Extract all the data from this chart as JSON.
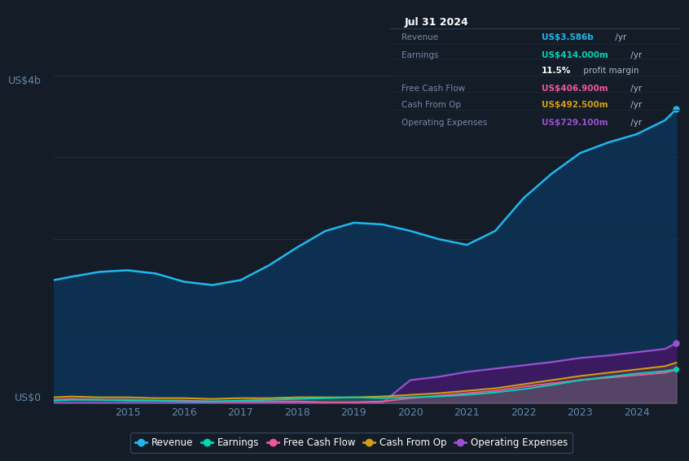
{
  "bg_color": "#131c27",
  "plot_bg_color": "#131c27",
  "ylabel_top": "US$4b",
  "ylabel_bottom": "US$0",
  "x_years": [
    2013.7,
    2014.0,
    2014.5,
    2015.0,
    2015.5,
    2016.0,
    2016.5,
    2017.0,
    2017.5,
    2018.0,
    2018.5,
    2019.0,
    2019.5,
    2020.0,
    2020.5,
    2021.0,
    2021.5,
    2022.0,
    2022.5,
    2023.0,
    2023.5,
    2024.0,
    2024.5,
    2024.7
  ],
  "revenue": [
    1.5,
    1.54,
    1.6,
    1.62,
    1.58,
    1.48,
    1.44,
    1.5,
    1.68,
    1.9,
    2.1,
    2.2,
    2.18,
    2.1,
    2.0,
    1.93,
    2.1,
    2.5,
    2.8,
    3.05,
    3.18,
    3.28,
    3.45,
    3.586
  ],
  "earnings": [
    0.03,
    0.04,
    0.04,
    0.03,
    0.03,
    0.02,
    0.02,
    0.03,
    0.04,
    0.05,
    0.06,
    0.07,
    0.06,
    0.07,
    0.08,
    0.1,
    0.13,
    0.17,
    0.22,
    0.28,
    0.32,
    0.36,
    0.39,
    0.414
  ],
  "free_cash_flow": [
    0.04,
    0.05,
    0.04,
    0.04,
    0.03,
    0.03,
    0.02,
    0.02,
    0.02,
    0.02,
    0.01,
    0.01,
    0.02,
    0.06,
    0.09,
    0.12,
    0.15,
    0.2,
    0.24,
    0.28,
    0.31,
    0.34,
    0.37,
    0.4069
  ],
  "cash_from_op": [
    0.07,
    0.08,
    0.07,
    0.07,
    0.06,
    0.06,
    0.05,
    0.06,
    0.06,
    0.07,
    0.07,
    0.07,
    0.08,
    0.1,
    0.12,
    0.15,
    0.18,
    0.23,
    0.28,
    0.33,
    0.37,
    0.41,
    0.45,
    0.4925
  ],
  "operating_expenses": [
    0.0,
    0.0,
    0.0,
    0.0,
    0.0,
    0.0,
    0.0,
    0.0,
    0.0,
    0.0,
    0.0,
    0.0,
    0.0,
    0.28,
    0.32,
    0.38,
    0.42,
    0.46,
    0.5,
    0.55,
    0.58,
    0.62,
    0.66,
    0.7291
  ],
  "revenue_color": "#1eb8f0",
  "earnings_color": "#00d4b4",
  "free_cash_flow_color": "#f0569a",
  "cash_from_op_color": "#d4a010",
  "operating_expenses_color": "#9b50d4",
  "revenue_fill": "#0e3050",
  "operating_expenses_fill": "#3a1a60",
  "ylim": [
    0,
    4.0
  ],
  "grid_color": "#1e2e3e",
  "tick_color": "#6688aa",
  "info_box": {
    "title": "Jul 31 2024",
    "rows": [
      {
        "label": "Revenue",
        "value": "US$3.586b",
        "value_color": "#1eb8f0",
        "suffix": " /yr"
      },
      {
        "label": "Earnings",
        "value": "US$414.000m",
        "value_color": "#00d4b4",
        "suffix": " /yr"
      },
      {
        "label": "",
        "value": "11.5%",
        "value_color": "#ffffff",
        "suffix": " profit margin"
      },
      {
        "label": "Free Cash Flow",
        "value": "US$406.900m",
        "value_color": "#f0569a",
        "suffix": " /yr"
      },
      {
        "label": "Cash From Op",
        "value": "US$492.500m",
        "value_color": "#d4a010",
        "suffix": " /yr"
      },
      {
        "label": "Operating Expenses",
        "value": "US$729.100m",
        "value_color": "#9b50d4",
        "suffix": " /yr"
      }
    ]
  },
  "legend_entries": [
    {
      "label": "Revenue",
      "color": "#1eb8f0"
    },
    {
      "label": "Earnings",
      "color": "#00d4b4"
    },
    {
      "label": "Free Cash Flow",
      "color": "#f0569a"
    },
    {
      "label": "Cash From Op",
      "color": "#d4a010"
    },
    {
      "label": "Operating Expenses",
      "color": "#9b50d4"
    }
  ]
}
